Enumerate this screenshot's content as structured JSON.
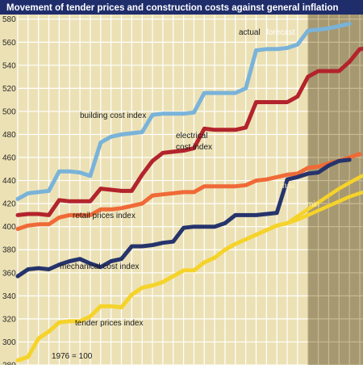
{
  "chart_data": {
    "type": "line",
    "title": "Movement of tender prices and construction costs against general inflation",
    "ylim": [
      280,
      584
    ],
    "yticks": [
      280,
      300,
      320,
      340,
      360,
      380,
      400,
      420,
      440,
      460,
      480,
      500,
      520,
      540,
      560,
      580
    ],
    "grid": true,
    "forecast_start_index": 28,
    "annotations": {
      "actual": "actual",
      "forecast": "forecast",
      "base_note": "1976 = 100",
      "max": "max",
      "min": "min"
    },
    "series": [
      {
        "name": "building cost index",
        "color": "#7ab3d9",
        "values": [
          424,
          429,
          430,
          431,
          448,
          448,
          447,
          444,
          473,
          478,
          480,
          481,
          482,
          497,
          498,
          498,
          498,
          499,
          516,
          516,
          516,
          516,
          520,
          553,
          554,
          554,
          555,
          558,
          570,
          571,
          572,
          574,
          576
        ]
      },
      {
        "name": "electrical cost index",
        "color": "#b3242c",
        "values": [
          410,
          411,
          411,
          410,
          423,
          422,
          422,
          422,
          433,
          432,
          431,
          431,
          445,
          457,
          464,
          465,
          466,
          468,
          485,
          484,
          484,
          484,
          486,
          508,
          508,
          508,
          508,
          513,
          530,
          535,
          535,
          535,
          543,
          554,
          555
        ]
      },
      {
        "name": "retail prices index",
        "color": "#ef6a37",
        "values": [
          398,
          401,
          402,
          402,
          408,
          410,
          410,
          410,
          415,
          415,
          416,
          418,
          420,
          427,
          428,
          429,
          430,
          430,
          435,
          435,
          435,
          435,
          436,
          440,
          441,
          443,
          445,
          446,
          451,
          452,
          455,
          457,
          460,
          463
        ]
      },
      {
        "name": "mechanical cost index",
        "color": "#26346c",
        "values": [
          357,
          363,
          364,
          363,
          367,
          370,
          372,
          368,
          365,
          370,
          372,
          383,
          383,
          384,
          386,
          387,
          399,
          400,
          400,
          400,
          403,
          410,
          410,
          410,
          411,
          412,
          441,
          443,
          446,
          447,
          453,
          457,
          458
        ]
      },
      {
        "name": "tender prices index",
        "color": "#f5d32a",
        "values": [
          284,
          287,
          303,
          309,
          317,
          318,
          318,
          322,
          331,
          331,
          330,
          341,
          347,
          349,
          352,
          357,
          362,
          362,
          369,
          373,
          380,
          385,
          389,
          393,
          397,
          401,
          403
        ]
      }
    ],
    "forecast_range": {
      "max": {
        "name": "max",
        "values": [
          403,
          409,
          415,
          421,
          427,
          433,
          438,
          443,
          447
        ]
      },
      "min": {
        "name": "min",
        "values": [
          403,
          406,
          410,
          414,
          418,
          422,
          426,
          429,
          432
        ]
      }
    },
    "x_count": 34,
    "base_label": "1976 = 100"
  },
  "colors": {
    "background": "#ece1b5",
    "forecast_band": "#a69870",
    "title_bar": "#1f2d6b",
    "grid": "#ffffff",
    "forecast_grid": "#c8bc94"
  }
}
